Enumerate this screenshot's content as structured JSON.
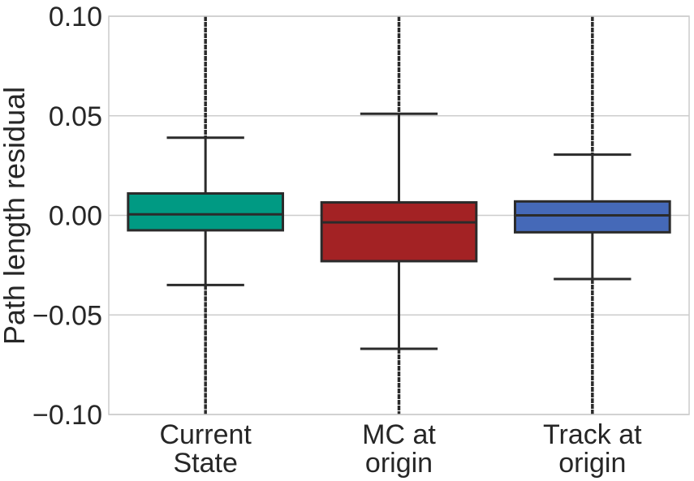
{
  "chart_data": {
    "type": "box",
    "title": "",
    "xlabel": "",
    "ylabel": "Path length residual",
    "ylim": [
      -0.1,
      0.1
    ],
    "yticks": [
      -0.1,
      -0.05,
      0.0,
      0.05,
      0.1
    ],
    "ytick_labels": [
      "−0.10",
      "−0.05",
      "0.00",
      "0.05",
      "0.10"
    ],
    "grid": true,
    "categories": [
      [
        "Current",
        "State"
      ],
      [
        "MC at",
        "origin"
      ],
      [
        "Track at",
        "origin"
      ]
    ],
    "boxes": [
      {
        "q1": -0.0075,
        "median": 0.0005,
        "q3": 0.011,
        "whisker_low": -0.035,
        "whisker_high": 0.039,
        "color": "#009a83"
      },
      {
        "q1": -0.023,
        "median": -0.0035,
        "q3": 0.0065,
        "whisker_low": -0.067,
        "whisker_high": 0.051,
        "color": "#a32224"
      },
      {
        "q1": -0.0085,
        "median": 0.0,
        "q3": 0.007,
        "whisker_low": -0.032,
        "whisker_high": 0.0305,
        "color": "#4569b8"
      }
    ],
    "outliers_extend_beyond_axes": true,
    "colors": {
      "edge": "#2b2b2b",
      "grid": "#cccccc",
      "frame": "#cccccc"
    }
  }
}
